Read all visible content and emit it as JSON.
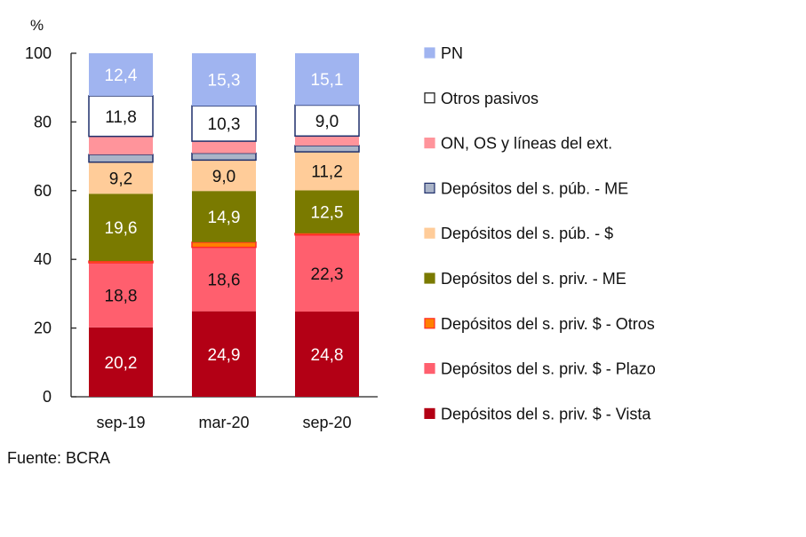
{
  "chart_data": {
    "type": "bar",
    "stacked": true,
    "ylabel": "%",
    "ylim": [
      0,
      100
    ],
    "yticks": [
      0,
      20,
      40,
      60,
      80,
      100
    ],
    "categories": [
      "sep-19",
      "mar-20",
      "sep-20"
    ],
    "legend_position": "right",
    "series": [
      {
        "name": "Depósitos del s. priv. $ - Vista",
        "color": "#b30015",
        "label_color": "#ffffff",
        "values": [
          20.2,
          24.9,
          24.8
        ],
        "labels": [
          "20,2",
          "24,9",
          "24,8"
        ]
      },
      {
        "name": "Depósitos del s. priv. $ - Plazo",
        "color": "#ff5f6e",
        "label_color": "#111111",
        "values": [
          18.8,
          18.6,
          22.3
        ],
        "labels": [
          "18,8",
          "18,6",
          "22,3"
        ]
      },
      {
        "name": "Depósitos del s. priv. $ - Otros",
        "color": "#ff8000",
        "border": "#ff2a2a",
        "values": [
          0.5,
          1.5,
          0.5
        ],
        "labels": [
          "",
          "",
          ""
        ]
      },
      {
        "name": "Depósitos del s. priv. - ME",
        "color": "#7a7a00",
        "label_color": "#ffffff",
        "values": [
          19.6,
          14.9,
          12.5
        ],
        "labels": [
          "19,6",
          "14,9",
          "12,5"
        ]
      },
      {
        "name": "Depósitos del s. púb. - $",
        "color": "#ffcc99",
        "label_color": "#111111",
        "values": [
          9.2,
          9.0,
          11.2
        ],
        "labels": [
          "9,2",
          "9,0",
          "11,2"
        ]
      },
      {
        "name": "Depósitos del s. púb. - ME",
        "color": "#aab4c8",
        "border": "#1f2f6b",
        "values": [
          2.2,
          2.0,
          1.8
        ],
        "labels": [
          "",
          "",
          ""
        ]
      },
      {
        "name": "ON, OS y líneas del ext.",
        "color": "#ff949b",
        "values": [
          5.3,
          3.5,
          2.8
        ],
        "labels": [
          "",
          "",
          ""
        ]
      },
      {
        "name": "Otros pasivos",
        "color": "#ffffff",
        "border": "#1f2f6b",
        "label_color": "#111111",
        "values": [
          11.8,
          10.3,
          9.0
        ],
        "labels": [
          "11,8",
          "10,3",
          "9,0"
        ]
      },
      {
        "name": "PN",
        "color": "#a0b4f0",
        "label_color": "#ffffff",
        "values": [
          12.4,
          15.3,
          15.1
        ],
        "labels": [
          "12,4",
          "15,3",
          "15,1"
        ]
      }
    ]
  },
  "source": "Fuente: BCRA"
}
